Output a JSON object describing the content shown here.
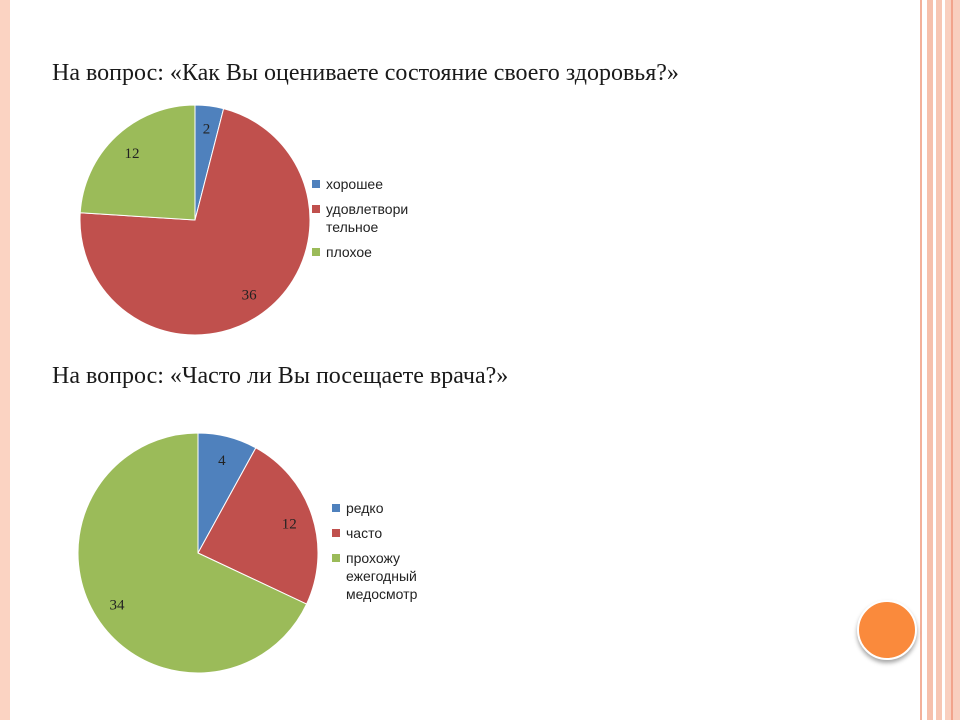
{
  "chart_data": [
    {
      "type": "pie",
      "title": "На вопрос: «Как Вы оцениваете состояние своего здоровья?»",
      "categories": [
        "хорошее",
        "удовлетворительное",
        "плохое"
      ],
      "legend_lines": [
        [
          "хорошее"
        ],
        [
          "удовлетвори",
          "тельное"
        ],
        [
          "плохое"
        ]
      ],
      "values": [
        2,
        36,
        12
      ],
      "colors": [
        "#4f81bd",
        "#c0504d",
        "#9bbb59"
      ],
      "legend_position": "right"
    },
    {
      "type": "pie",
      "title": "На вопрос: «Часто ли Вы посещаете врача?»",
      "categories": [
        "редко",
        "часто",
        "прохожу ежегодный медосмотр"
      ],
      "legend_lines": [
        [
          "редко"
        ],
        [
          "часто"
        ],
        [
          "прохожу",
          "ежегодный",
          "медосмотр"
        ]
      ],
      "values": [
        4,
        12,
        34
      ],
      "colors": [
        "#4f81bd",
        "#c0504d",
        "#9bbb59"
      ],
      "legend_position": "right"
    }
  ]
}
